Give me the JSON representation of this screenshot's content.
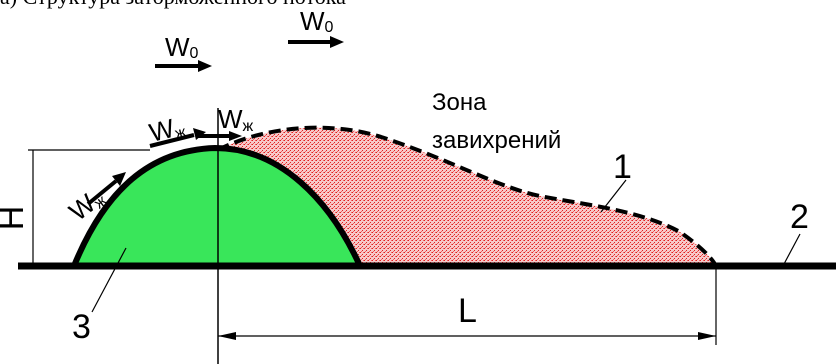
{
  "top_caption": "а) Структура заторможенного потока",
  "labels": {
    "zone_line1": "Зона",
    "zone_line2": "завихрений",
    "n1": "1",
    "n2": "2",
    "n3": "3",
    "H": "H",
    "L": "L",
    "W": "W",
    "sub0": "0",
    "subzh": "ж"
  },
  "colors": {
    "hill": "#39e65a",
    "vortex": "#f08a8a",
    "ground": "#000000"
  }
}
